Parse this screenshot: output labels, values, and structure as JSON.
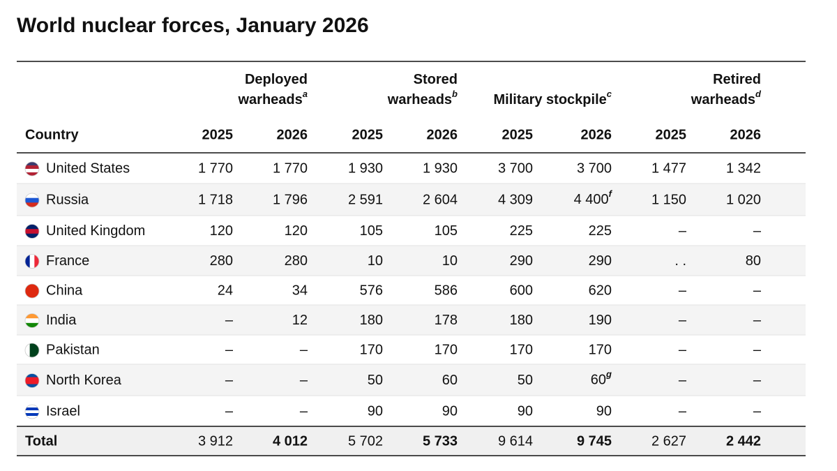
{
  "title": "World nuclear forces, January 2026",
  "table": {
    "groups": [
      {
        "label": [
          "Deployed",
          "warheads"
        ],
        "note": "a"
      },
      {
        "label": [
          "Stored",
          "warheads"
        ],
        "note": "b"
      },
      {
        "label": [
          "Military stockpile"
        ],
        "note": "c"
      },
      {
        "label": [
          "Retired",
          "warheads"
        ],
        "note": "d"
      }
    ],
    "country_header": "Country",
    "years": [
      "2025",
      "2026",
      "2025",
      "2026",
      "2025",
      "2026",
      "2025",
      "2026"
    ],
    "rows": [
      {
        "country": "United States",
        "cells": [
          "1 770",
          "1 770",
          "1 930",
          "1 930",
          "3 700",
          "3 700",
          "1 477",
          "1 342"
        ]
      },
      {
        "country": "Russia",
        "cells": [
          "1 718",
          "1 796",
          "2 591",
          "2 604",
          "4 309",
          {
            "text": "4 400",
            "note": "f"
          },
          "1 150",
          "1 020"
        ]
      },
      {
        "country": "United Kingdom",
        "cells": [
          "120",
          "120",
          "105",
          "105",
          "225",
          "225",
          "–",
          "–"
        ]
      },
      {
        "country": "France",
        "cells": [
          "280",
          "280",
          "10",
          "10",
          "290",
          "290",
          ". .",
          "80"
        ]
      },
      {
        "country": "China",
        "cells": [
          "24",
          "34",
          "576",
          "586",
          "600",
          "620",
          "–",
          "–"
        ]
      },
      {
        "country": "India",
        "cells": [
          "–",
          "12",
          "180",
          "178",
          "180",
          "190",
          "–",
          "–"
        ]
      },
      {
        "country": "Pakistan",
        "cells": [
          "–",
          "–",
          "170",
          "170",
          "170",
          "170",
          "–",
          "–"
        ]
      },
      {
        "country": "North Korea",
        "cells": [
          "–",
          "–",
          "50",
          "60",
          "50",
          {
            "text": "60",
            "note": "g"
          },
          "–",
          "–"
        ]
      },
      {
        "country": "Israel",
        "cells": [
          "–",
          "–",
          "90",
          "90",
          "90",
          "90",
          "–",
          "–"
        ]
      }
    ],
    "total": {
      "label": "Total",
      "cells": [
        "3 912",
        "4 012",
        "5 702",
        "5 733",
        "9 614",
        "9 745",
        "2 627",
        "2 442"
      ]
    }
  }
}
